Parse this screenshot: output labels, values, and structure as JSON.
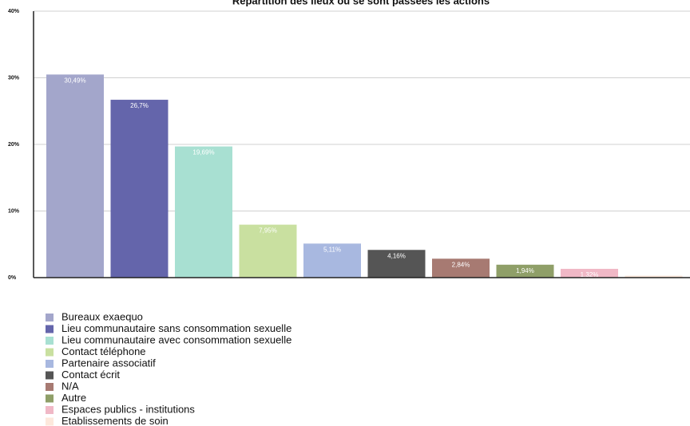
{
  "chart_data": {
    "type": "bar",
    "title": "Répartition des lieux où se sont passées les actions",
    "categories": [
      "Bureaux exaequo",
      "Lieu communautaire sans consommation sexuelle",
      "Lieu communautaire avec consommation sexuelle",
      "Contact téléphone",
      "Partenaire associatif",
      "Contact écrit",
      "N/A",
      "Autre",
      "Espaces publics - institutions",
      "Etablissements de soin"
    ],
    "values": [
      30.49,
      26.7,
      19.69,
      7.95,
      5.11,
      4.16,
      2.84,
      1.94,
      1.32,
      0.3
    ],
    "value_labels": [
      "30,49%",
      "26,7%",
      "19,69%",
      "7,95%",
      "5,11%",
      "4,16%",
      "2,84%",
      "1,94%",
      "1,32%",
      null
    ],
    "colors": [
      "#a3a6cb",
      "#6465ab",
      "#a8e0d2",
      "#c9e0a0",
      "#a8b8e0",
      "#555555",
      "#a77a72",
      "#8f9f68",
      "#f0b8c6",
      "#fde8dc"
    ],
    "ylim": [
      0,
      40
    ],
    "yticks": [
      {
        "value": 0,
        "label": "0%"
      },
      {
        "value": 10,
        "label": "10%"
      },
      {
        "value": 20,
        "label": "20%"
      },
      {
        "value": 30,
        "label": "30%"
      },
      {
        "value": 40,
        "label": "40%"
      }
    ],
    "grid": true,
    "legend": "bottom"
  }
}
